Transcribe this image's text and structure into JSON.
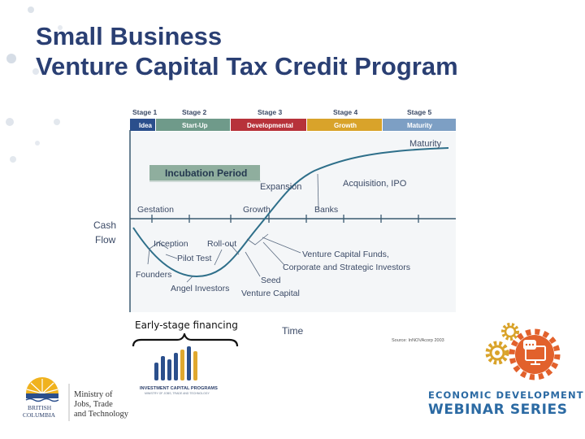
{
  "title": {
    "line1": "Small Business",
    "line2": "Venture Capital Tax Credit Program"
  },
  "diagram": {
    "stages": [
      {
        "label": "Stage 1",
        "name": "Idea",
        "color": "#2b4f8c"
      },
      {
        "label": "Stage 2",
        "name": "Start-Up",
        "color": "#6f9a8a"
      },
      {
        "label": "Stage 3",
        "name": "Developmental",
        "color": "#b7323a"
      },
      {
        "label": "Stage 4",
        "name": "Growth",
        "color": "#d9a32a"
      },
      {
        "label": "Stage 5",
        "name": "Maturity",
        "color": "#7d9fc4"
      }
    ],
    "y_axis_label_line1": "Cash",
    "y_axis_label_line2": "Flow",
    "x_axis_label": "Time",
    "incubation_label": "Incubation Period",
    "annotations": {
      "maturity": "Maturity",
      "expansion": "Expansion",
      "acquisition": "Acquisition, IPO",
      "gestation": "Gestation",
      "growth": "Growth",
      "banks": "Banks",
      "inception": "Inception",
      "rollout": "Roll-out",
      "pilot": "Pilot Test",
      "founders": "Founders",
      "angel": "Angel Investors",
      "vcfunds": "Venture Capital Funds,",
      "corporate": "Corporate and Strategic Investors",
      "seed": "Seed",
      "seedvc": "Venture Capital"
    },
    "source": "Source: InNOVAcorp 2003",
    "colors": {
      "curve": "#2e6f8a",
      "annotation": "#3b4a66"
    }
  },
  "early_stage_label": "Early-stage financing",
  "icp_logo": {
    "line1": "INVESTMENT CAPITAL PROGRAMS",
    "line2": "MINISTRY OF JOBS, TRADE AND TECHNOLOGY"
  },
  "bc_logo": {
    "line1": "BRITISH",
    "line2": "COLUMBIA"
  },
  "ministry": {
    "line1": "Ministry of",
    "line2": "Jobs, Trade",
    "line3": "and Technology"
  },
  "webinar": {
    "line1": "ECONOMIC DEVELOPMENT",
    "line2": "WEBINAR SERIES"
  }
}
